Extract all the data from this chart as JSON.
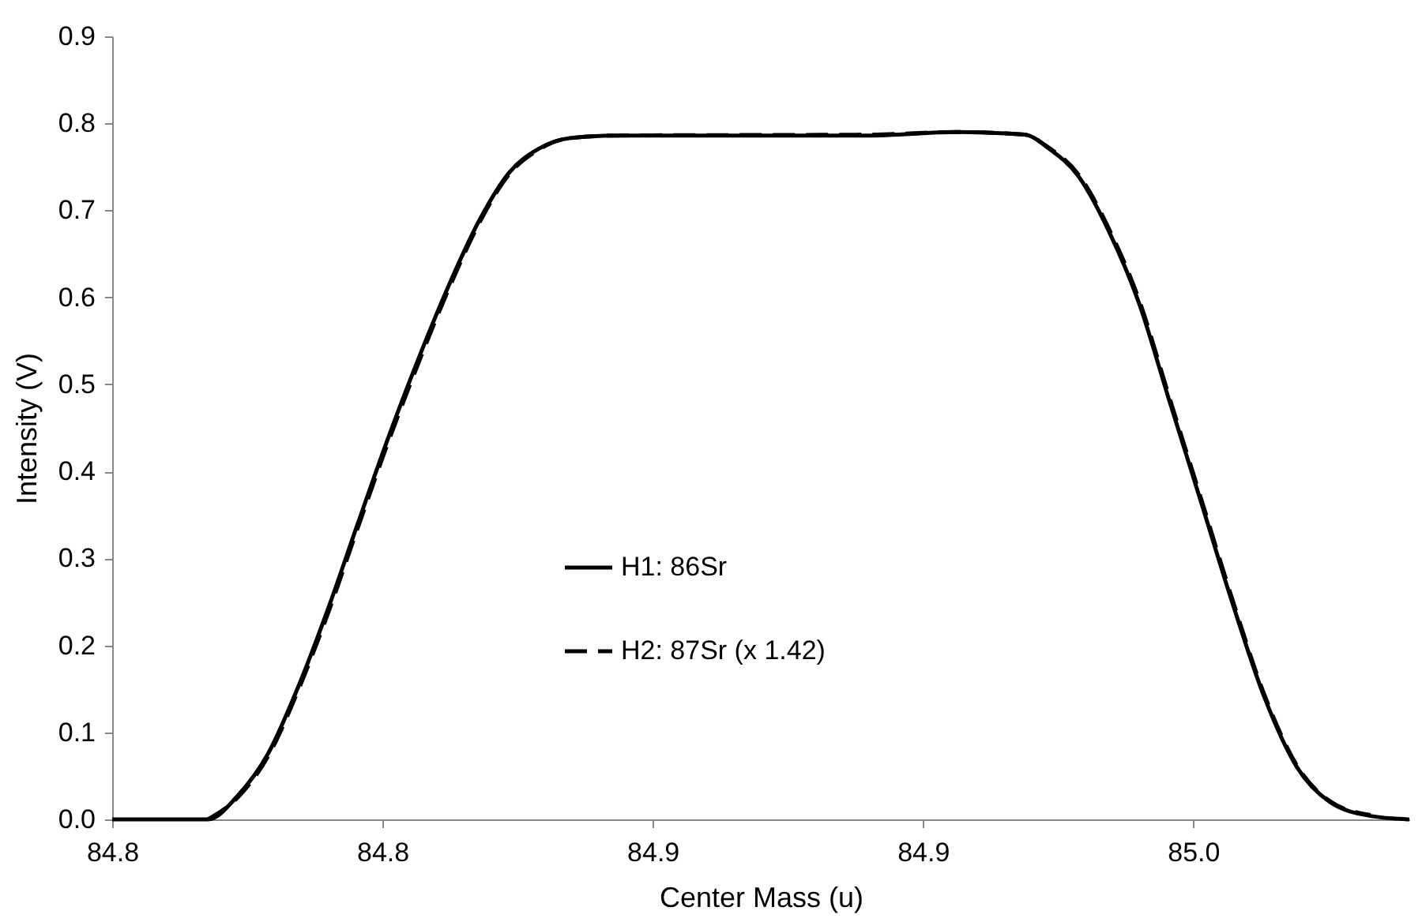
{
  "chart_data": {
    "type": "line",
    "xlabel": "Center Mass (u)",
    "ylabel": "Intensity (V)",
    "x": [
      84.76,
      84.7777,
      84.7832,
      84.7888,
      84.7944,
      84.8,
      84.8055,
      84.8111,
      84.8167,
      84.8223,
      84.8278,
      84.8334,
      84.839,
      84.8446,
      84.8535,
      84.8998,
      84.9165,
      84.9288,
      84.9333,
      84.9388,
      84.9444,
      84.95,
      84.9556,
      84.9612,
      84.9672,
      84.9732,
      84.9792,
      84.9853,
      84.9928,
      85.0
    ],
    "series": [
      {
        "name": "H1: 86Sr",
        "color": "#000000",
        "line_style": "solid",
        "values": [
          0,
          0,
          0.027,
          0.075,
          0.152,
          0.243,
          0.341,
          0.439,
          0.53,
          0.614,
          0.687,
          0.743,
          0.771,
          0.783,
          0.786,
          0.786,
          0.79,
          0.787,
          0.771,
          0.739,
          0.676,
          0.593,
          0.481,
          0.37,
          0.25,
          0.14,
          0.06,
          0.02,
          0.004,
          0
        ]
      },
      {
        "name": "H2: 87Sr (x 1.42)",
        "color": "#000000",
        "line_style": "dashed",
        "x": [
          84.7777,
          84.7832,
          84.7888,
          84.7944,
          84.8,
          84.8055,
          84.8111,
          84.8167,
          84.8223,
          84.8278,
          84.8334,
          84.839,
          84.8446,
          84.8535,
          84.8998,
          84.9165,
          84.9288,
          84.9333,
          84.9388,
          84.9444,
          84.95,
          84.9556,
          84.9612,
          84.9672,
          84.9732,
          84.9792,
          84.9853,
          84.9928
        ],
        "values": [
          0,
          0.025,
          0.072,
          0.148,
          0.238,
          0.336,
          0.434,
          0.525,
          0.61,
          0.684,
          0.741,
          0.77,
          0.783,
          0.786,
          0.787,
          0.79,
          0.787,
          0.772,
          0.741,
          0.679,
          0.597,
          0.485,
          0.374,
          0.254,
          0.143,
          0.062,
          0.021,
          0.005
        ]
      }
    ],
    "xlim": [
      84.76,
      85.0
    ],
    "xticks": [
      {
        "value": 84.76,
        "label": "84.8"
      },
      {
        "value": 84.81,
        "label": "84.8"
      },
      {
        "value": 84.86,
        "label": "84.9"
      },
      {
        "value": 84.91,
        "label": "84.9"
      },
      {
        "value": 84.96,
        "label": "85.0"
      }
    ],
    "ylim": [
      0,
      0.9
    ],
    "yticks": [
      {
        "value": 0,
        "label": "0.0"
      },
      0.1,
      0.2,
      0.3,
      0.4,
      0.5,
      0.6,
      0.7,
      0.8,
      0.9
    ],
    "legend": "bottom",
    "grid": false
  }
}
